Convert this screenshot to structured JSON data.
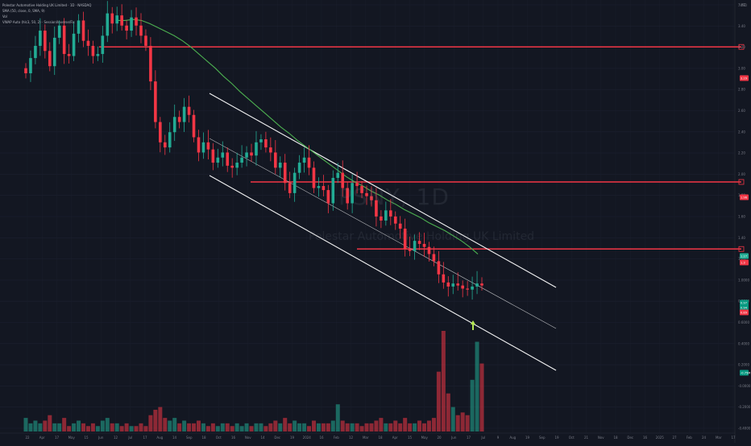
{
  "legend": {
    "symbol_line": "Polestar Automotive Holding UK Limited · 1D · NASDAQ",
    "ma_line": "SMA (50, close, 0, SMA, 9)",
    "vol_line": "Vol",
    "vwap_line": "VWAP Auto (hlc3, 50, 2) · Session/Inverse/Fix"
  },
  "watermark": {
    "ticker": "PSNY, 1D",
    "name": "Polestar Automotive Holding UK Limited"
  },
  "corner": {
    "currency": "USD"
  },
  "price_axis": {
    "labels": [
      "3.60",
      "3.40",
      "3.20",
      "3.00",
      "2.80",
      "2.60",
      "2.40",
      "2.20",
      "2.00",
      "1.80",
      "1.60",
      "1.40",
      "1.20",
      "1.0000",
      "0.8000",
      "0.6000",
      "0.4000",
      "0.2000",
      "-0.0000",
      "-0.2000",
      "-0.4000"
    ]
  },
  "price_tags": [
    {
      "text": "3.29",
      "bg": "#f23645"
    },
    {
      "text": "1.96",
      "bg": "#f23645"
    },
    {
      "text": "1.3",
      "bg": "#f23645"
    },
    {
      "text": "1.27",
      "bg": "#22ab94"
    },
    {
      "text": "0.97",
      "bg": "#089981"
    },
    {
      "text": "0.94",
      "bg": "#089981"
    },
    {
      "text": "0.89",
      "bg": "#f23645"
    },
    {
      "text": "-0.75M",
      "bg": "#089981"
    }
  ],
  "time_axis": {
    "labels": [
      "22",
      "Apr",
      "17",
      "May",
      "15",
      "Jun",
      "12",
      "Jul",
      "17",
      "Aug",
      "14",
      "Sep",
      "18",
      "Oct",
      "16",
      "Nov",
      "14",
      "Dec",
      "19",
      "2024",
      "16",
      "Feb",
      "12",
      "Mar",
      "18",
      "Apr",
      "15",
      "May",
      "20",
      "Jun",
      "17",
      "Jul",
      "9",
      "Aug",
      "19",
      "Sep",
      "19",
      "Oct",
      "21",
      "Nov",
      "18",
      "Dec",
      "16",
      "2025",
      "27",
      "Feb",
      "24",
      "Mar",
      "17"
    ]
  },
  "colors": {
    "up": "#22ab94",
    "down": "#f23645",
    "ma": "#4caf50",
    "support": "#f23645",
    "channel": "#ffffff",
    "arrow": "#b5e853"
  },
  "chart_data": {
    "type": "candlestick",
    "symbol": "PSNY",
    "interval": "1D",
    "exchange": "NASDAQ",
    "price_range": [
      -0.45,
      3.72
    ],
    "horizontal_levels": [
      3.29,
      1.96,
      1.3
    ],
    "close_series": [
      3.03,
      3.18,
      3.3,
      3.45,
      3.25,
      3.1,
      3.38,
      3.5,
      3.22,
      3.2,
      3.42,
      3.55,
      3.35,
      3.3,
      3.2,
      3.22,
      3.4,
      3.62,
      3.52,
      3.6,
      3.5,
      3.45,
      3.58,
      3.5,
      3.4,
      3.3,
      2.95,
      2.55,
      2.35,
      2.3,
      2.45,
      2.6,
      2.55,
      2.7,
      2.62,
      2.4,
      2.25,
      2.35,
      2.28,
      2.15,
      2.2,
      2.25,
      2.12,
      2.1,
      2.15,
      2.2,
      2.25,
      2.22,
      2.35,
      2.38,
      2.3,
      2.25,
      2.1,
      2.15,
      1.95,
      1.85,
      2.05,
      2.15,
      2.2,
      2.1,
      1.9,
      1.92,
      1.88,
      1.75,
      2.0,
      2.05,
      1.9,
      1.75,
      1.95,
      1.92,
      1.85,
      1.82,
      1.78,
      1.62,
      1.58,
      1.68,
      1.62,
      1.55,
      1.5,
      1.3,
      1.28,
      1.38,
      1.35,
      1.32,
      1.25,
      1.18,
      1.05,
      0.97,
      0.93,
      0.96,
      0.94,
      0.91,
      0.9,
      0.93,
      0.96,
      0.94
    ],
    "ma_series": [
      3.55,
      3.55,
      3.56,
      3.55,
      3.52,
      3.48,
      3.44,
      3.4,
      3.35,
      3.29,
      3.22,
      3.15,
      3.08,
      3.0,
      2.93,
      2.85,
      2.78,
      2.71,
      2.64,
      2.57,
      2.5,
      2.44,
      2.37,
      2.31,
      2.25,
      2.19,
      2.13,
      2.07,
      2.01,
      1.96,
      1.92,
      1.87,
      1.83,
      1.78,
      1.74,
      1.69,
      1.65,
      1.61,
      1.56,
      1.52,
      1.48,
      1.43,
      1.38,
      1.32,
      1.25
    ],
    "volume_series": [
      5,
      3,
      4,
      3,
      4,
      6,
      3,
      3,
      5,
      2,
      3,
      4,
      3,
      2,
      3,
      2,
      4,
      5,
      3,
      3,
      2,
      3,
      2,
      2,
      3,
      2,
      6,
      8,
      9,
      5,
      4,
      5,
      3,
      4,
      3,
      3,
      4,
      3,
      2,
      3,
      2,
      3,
      3,
      2,
      3,
      2,
      3,
      2,
      3,
      3,
      2,
      3,
      4,
      3,
      5,
      3,
      4,
      3,
      3,
      2,
      4,
      3,
      3,
      3,
      4,
      10,
      4,
      3,
      3,
      3,
      2,
      3,
      3,
      4,
      5,
      3,
      3,
      4,
      3,
      5,
      3,
      3,
      4,
      3,
      4,
      5,
      22,
      37,
      14,
      9,
      6,
      7,
      6,
      19,
      33,
      25
    ]
  }
}
